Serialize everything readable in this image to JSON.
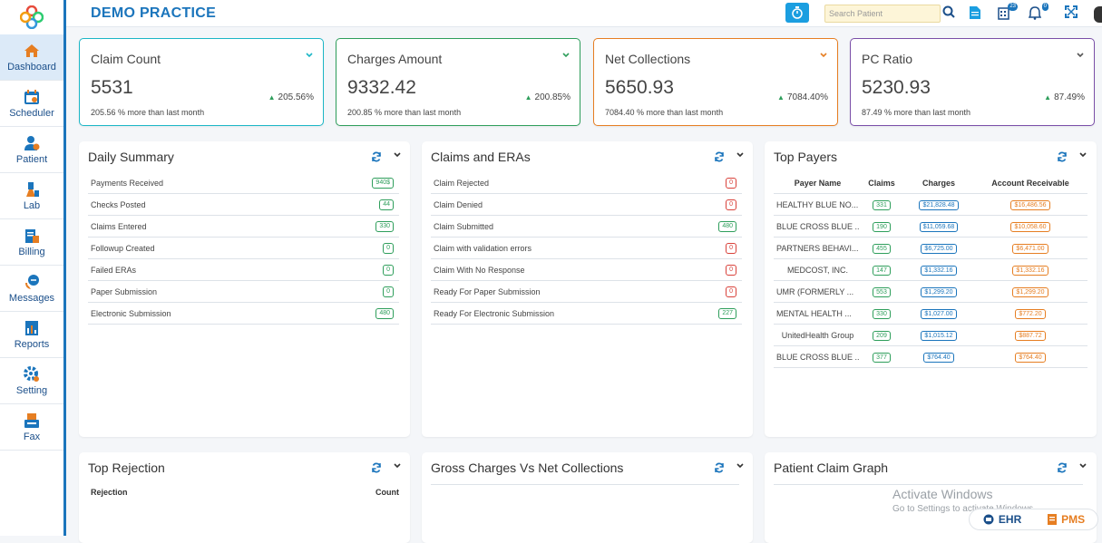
{
  "app": {
    "brand": "DEMO PRACTICE"
  },
  "search": {
    "placeholder": "Search Patient"
  },
  "badges": {
    "tasks": "23",
    "notifications": "0"
  },
  "sidebar": {
    "items": [
      {
        "label": "Dashboard",
        "icon": "home-icon"
      },
      {
        "label": "Scheduler",
        "icon": "calendar-icon"
      },
      {
        "label": "Patient",
        "icon": "patient-icon"
      },
      {
        "label": "Lab",
        "icon": "lab-icon"
      },
      {
        "label": "Billing",
        "icon": "billing-icon"
      },
      {
        "label": "Messages",
        "icon": "messages-icon"
      },
      {
        "label": "Reports",
        "icon": "reports-icon"
      },
      {
        "label": "Setting",
        "icon": "gear-icon"
      },
      {
        "label": "Fax",
        "icon": "fax-icon"
      }
    ]
  },
  "kpis": [
    {
      "title": "Claim Count",
      "value": "5531",
      "pct": "205.56%",
      "sub": "205.56 % more than last month",
      "color": "#1bb6c6"
    },
    {
      "title": "Charges Amount",
      "value": "9332.42",
      "pct": "200.85%",
      "sub": "200.85 % more than last month",
      "color": "#2e9e5b"
    },
    {
      "title": "Net Collections",
      "value": "5650.93",
      "pct": "7084.40%",
      "sub": "7084.40 % more than last month",
      "color": "#e67e22"
    },
    {
      "title": "PC Ratio",
      "value": "5230.93",
      "pct": "87.49%",
      "sub": "87.49 % more than last month",
      "color": "#7a4fa8"
    }
  ],
  "daily_summary": {
    "title": "Daily Summary",
    "rows": [
      {
        "label": "Payments Received",
        "value": "940$"
      },
      {
        "label": "Checks Posted",
        "value": "44"
      },
      {
        "label": "Claims Entered",
        "value": "330"
      },
      {
        "label": "Followup Created",
        "value": "0"
      },
      {
        "label": "Failed ERAs",
        "value": "0"
      },
      {
        "label": "Paper Submission",
        "value": "0"
      },
      {
        "label": "Electronic Submission",
        "value": "480"
      }
    ]
  },
  "claims_eras": {
    "title": "Claims and ERAs",
    "rows": [
      {
        "label": "Claim Rejected",
        "value": "0"
      },
      {
        "label": "Claim Denied",
        "value": "0"
      },
      {
        "label": "Claim Submitted",
        "value": "480"
      },
      {
        "label": "Claim with validation errors",
        "value": "0"
      },
      {
        "label": "Claim With No Response",
        "value": "0"
      },
      {
        "label": "Ready For Paper Submission",
        "value": "0"
      },
      {
        "label": "Ready For Electronic Submission",
        "value": "227"
      }
    ]
  },
  "top_payers": {
    "title": "Top Payers",
    "headers": [
      "Payer Name",
      "Claims",
      "Charges",
      "Account Receivable"
    ],
    "rows": [
      {
        "name": "HEALTHY BLUE NO...",
        "claims": "331",
        "charges": "$21,828.48",
        "ar": "$16,486.56"
      },
      {
        "name": "BLUE CROSS BLUE ...",
        "claims": "190",
        "charges": "$11,059.68",
        "ar": "$10,058.60"
      },
      {
        "name": "PARTNERS BEHAVI...",
        "claims": "455",
        "charges": "$6,725.00",
        "ar": "$6,471.00"
      },
      {
        "name": "MEDCOST, INC.",
        "claims": "147",
        "charges": "$1,332.16",
        "ar": "$1,332.16"
      },
      {
        "name": "UMR (FORMERLY ...",
        "claims": "553",
        "charges": "$1,299.20",
        "ar": "$1,299.20"
      },
      {
        "name": "MENTAL HEALTH ...",
        "claims": "330",
        "charges": "$1,027.00",
        "ar": "$772.20"
      },
      {
        "name": "UnitedHealth Group",
        "claims": "209",
        "charges": "$1,015.12",
        "ar": "$887.72"
      },
      {
        "name": "BLUE CROSS BLUE ...",
        "claims": "377",
        "charges": "$764.40",
        "ar": "$764.40"
      }
    ]
  },
  "top_rejection": {
    "title": "Top Rejection",
    "col1": "Rejection",
    "col2": "Count"
  },
  "gross_vs_net": {
    "title": "Gross Charges Vs Net Collections"
  },
  "patient_claim": {
    "title": "Patient Claim Graph"
  },
  "watermark": {
    "line1": "Activate Windows",
    "line2": "Go to Settings to activate Windows."
  },
  "footer": {
    "ehr": "EHR",
    "pms": "PMS"
  }
}
